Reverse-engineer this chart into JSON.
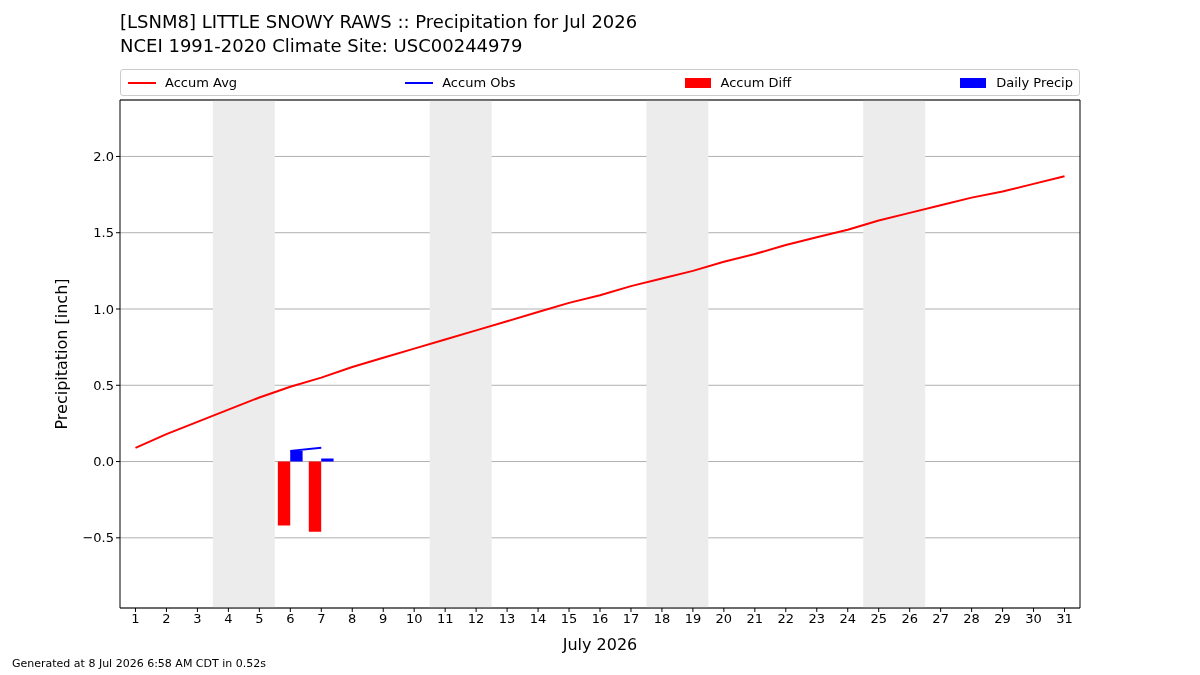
{
  "chart_data": {
    "type": "line",
    "title": "[LSNM8] LITTLE SNOWY RAWS :: Precipitation for Jul 2026",
    "subtitle": "NCEI 1991-2020 Climate Site: USC00244979",
    "xlabel": "July 2026",
    "ylabel": "Precipitation [inch]",
    "annotations": [
      "Generated at 8 Jul 2026 6:58 AM CDT in 0.52s"
    ],
    "x": [
      1,
      2,
      3,
      4,
      5,
      6,
      7,
      8,
      9,
      10,
      11,
      12,
      13,
      14,
      15,
      16,
      17,
      18,
      19,
      20,
      21,
      22,
      23,
      24,
      25,
      26,
      27,
      28,
      29,
      30,
      31
    ],
    "series": [
      {
        "name": "Accum Avg",
        "color": "#ff0000",
        "values": [
          0.09,
          0.18,
          0.26,
          0.34,
          0.42,
          0.49,
          0.55,
          0.62,
          0.68,
          0.74,
          0.8,
          0.86,
          0.92,
          0.98,
          1.04,
          1.09,
          1.15,
          1.2,
          1.25,
          1.31,
          1.36,
          1.42,
          1.47,
          1.52,
          1.58,
          1.63,
          1.68,
          1.73,
          1.77,
          1.82,
          1.87
        ]
      },
      {
        "name": "Accum Obs",
        "color": "#0000ff",
        "values": [
          null,
          null,
          null,
          null,
          null,
          0.07,
          0.09,
          null,
          null,
          null,
          null,
          null,
          null,
          null,
          null,
          null,
          null,
          null,
          null,
          null,
          null,
          null,
          null,
          null,
          null,
          null,
          null,
          null,
          null,
          null,
          null
        ]
      },
      {
        "name": "Accum Diff",
        "type": "bar",
        "color": "#ff0000",
        "values": [
          null,
          null,
          null,
          null,
          null,
          -0.42,
          -0.46,
          null,
          null,
          null,
          null,
          null,
          null,
          null,
          null,
          null,
          null,
          null,
          null,
          null,
          null,
          null,
          null,
          null,
          null,
          null,
          null,
          null,
          null,
          null,
          null
        ]
      },
      {
        "name": "Daily Precip",
        "type": "bar",
        "color": "#0000ff",
        "values": [
          null,
          null,
          null,
          null,
          null,
          0.07,
          0.02,
          null,
          null,
          null,
          null,
          null,
          null,
          null,
          null,
          null,
          null,
          null,
          null,
          null,
          null,
          null,
          null,
          null,
          null,
          null,
          null,
          null,
          null,
          null,
          null
        ]
      }
    ],
    "xlim": [
      0.5,
      31.5
    ],
    "xticks": [
      1,
      2,
      3,
      4,
      5,
      6,
      7,
      8,
      9,
      10,
      11,
      12,
      13,
      14,
      15,
      16,
      17,
      18,
      19,
      20,
      21,
      22,
      23,
      24,
      25,
      26,
      27,
      28,
      29,
      30,
      31
    ],
    "ylim": [
      -0.96,
      2.37
    ],
    "yticks": [
      {
        "value": -0.5,
        "label": "−0.5"
      },
      {
        "value": 0,
        "label": "0.0"
      },
      {
        "value": 0.5,
        "label": "0.5"
      },
      {
        "value": 1,
        "label": "1.0"
      },
      {
        "value": 1.5,
        "label": "1.5"
      },
      {
        "value": 2,
        "label": "2.0"
      }
    ],
    "grid": "y",
    "legend": "top",
    "bands": [
      {
        "axis": "x",
        "from": 3.5,
        "to": 5.5,
        "color": "#ececec"
      },
      {
        "axis": "x",
        "from": 10.5,
        "to": 12.5,
        "color": "#ececec"
      },
      {
        "axis": "x",
        "from": 17.5,
        "to": 19.5,
        "color": "#ececec"
      },
      {
        "axis": "x",
        "from": 24.5,
        "to": 26.5,
        "color": "#ececec"
      }
    ]
  }
}
